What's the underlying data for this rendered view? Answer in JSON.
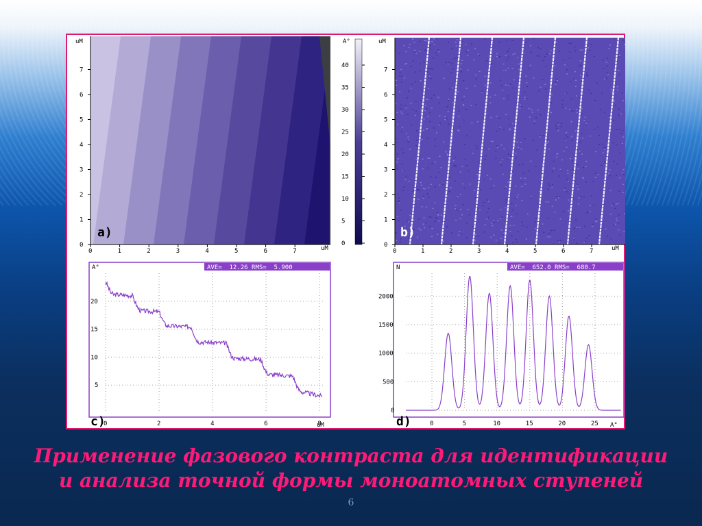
{
  "caption": {
    "line1": "Применение фазового контраста для идентификации",
    "line2": "и анализа точной формы моноатомных ступеней"
  },
  "page_number": "6",
  "colors": {
    "frame": "#e0196e",
    "caption": "#ff1a78",
    "plot_line": "#8a3fc9",
    "stat_bar": "#8a3fc9"
  },
  "panels": {
    "a": {
      "label": "a)",
      "unit": "uM",
      "ticks": [
        "0",
        "1",
        "2",
        "3",
        "4",
        "5",
        "6",
        "7"
      ]
    },
    "colorbar": {
      "unit": "A°",
      "ticks": [
        "0",
        "5",
        "10",
        "15",
        "20",
        "25",
        "30",
        "35",
        "40"
      ]
    },
    "b": {
      "label": "b)",
      "unit": "uM",
      "ticks": [
        "0",
        "1",
        "2",
        "3",
        "4",
        "5",
        "6",
        "7"
      ]
    },
    "c": {
      "label": "c)",
      "ylabel": "A°",
      "xunit": "uM",
      "stats": "AVE=  12.26 RMS=  5.900"
    },
    "d": {
      "label": "d)",
      "ylabel": "N",
      "xunit": "A°",
      "stats": "AVE=  652.0 RMS=  680.7"
    }
  },
  "chart_data": [
    {
      "type": "line",
      "title": "",
      "ylabel": "A°",
      "xlabel": "uM",
      "xlim": [
        0,
        8.2
      ],
      "ylim": [
        0,
        25
      ],
      "xticks": [
        0,
        2,
        4,
        6,
        8
      ],
      "yticks": [
        5,
        10,
        15,
        20
      ],
      "x": [
        0.0,
        0.2,
        0.3,
        1.0,
        1.2,
        1.3,
        2.0,
        2.2,
        2.3,
        3.2,
        3.4,
        3.5,
        4.5,
        4.7,
        4.8,
        5.8,
        6.0,
        6.1,
        7.0,
        7.2,
        7.3,
        8.1
      ],
      "y": [
        23.5,
        21.5,
        21.2,
        21.0,
        18.8,
        18.3,
        18.1,
        16.0,
        15.6,
        15.4,
        13.0,
        12.7,
        12.5,
        10.2,
        9.8,
        9.6,
        7.3,
        6.9,
        6.6,
        4.3,
        3.8,
        3.0
      ],
      "stats": {
        "AVE": 12.26,
        "RMS": 5.9
      }
    },
    {
      "type": "line",
      "title": "",
      "ylabel": "N",
      "xlabel": "A°",
      "xlim": [
        -4,
        29
      ],
      "ylim": [
        0,
        2400
      ],
      "xticks": [
        0,
        5,
        10,
        15,
        20,
        25
      ],
      "yticks": [
        0,
        500,
        1000,
        1500,
        2000
      ],
      "peaks": [
        {
          "x": 2.5,
          "y": 1350
        },
        {
          "x": 5.8,
          "y": 2350
        },
        {
          "x": 8.8,
          "y": 2050
        },
        {
          "x": 12.0,
          "y": 2180
        },
        {
          "x": 15.0,
          "y": 2280
        },
        {
          "x": 18.0,
          "y": 2000
        },
        {
          "x": 21.0,
          "y": 1650
        },
        {
          "x": 24.0,
          "y": 1150
        }
      ],
      "stats": {
        "AVE": 652.0,
        "RMS": 680.7
      }
    }
  ]
}
